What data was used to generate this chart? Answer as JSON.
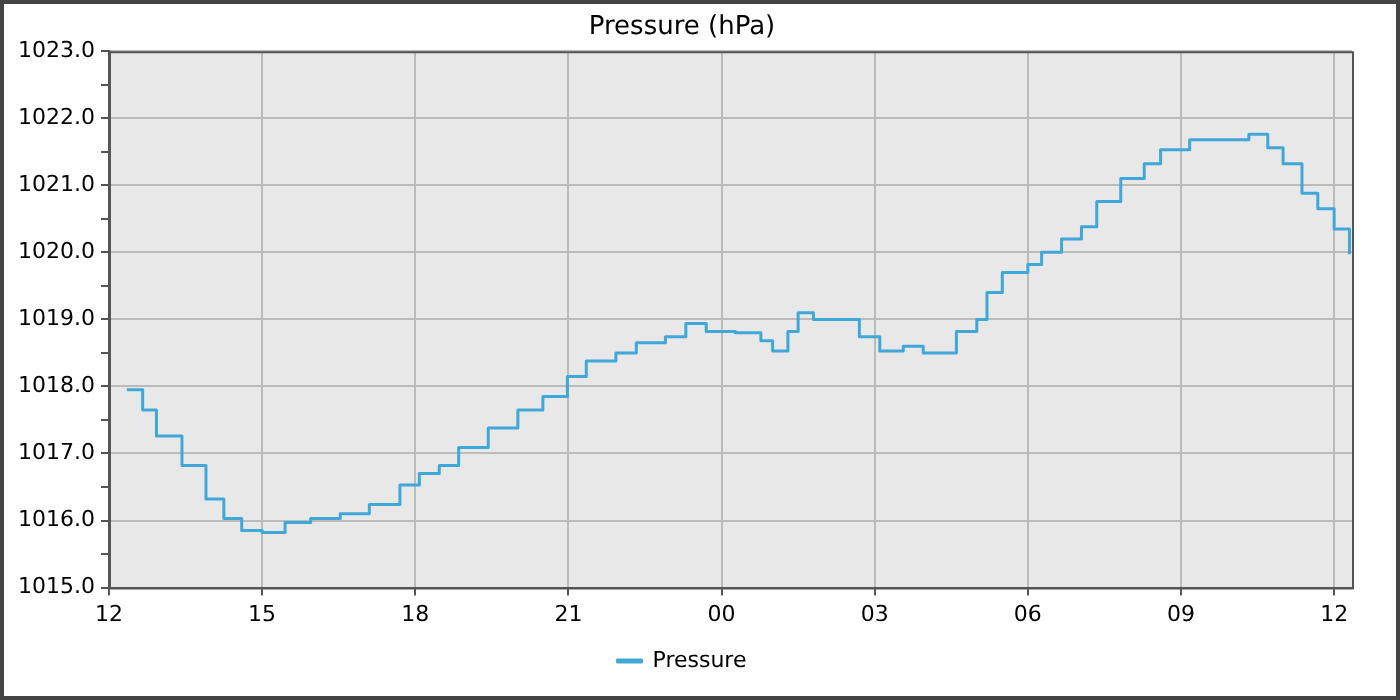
{
  "chart_data": {
    "type": "step",
    "title": "Pressure (hPa)",
    "x": [
      12.35,
      12.66,
      12.93,
      13.43,
      13.9,
      14.25,
      14.6,
      15.0,
      15.45,
      15.95,
      16.53,
      17.1,
      17.7,
      18.08,
      18.47,
      18.85,
      19.43,
      20.01,
      20.5,
      20.98,
      21.35,
      21.93,
      22.33,
      22.9,
      23.3,
      23.7,
      24.27,
      24.77,
      25.0,
      25.3,
      25.5,
      25.8,
      26.4,
      26.7,
      27.1,
      27.56,
      27.95,
      28.33,
      28.6,
      29.0,
      29.2,
      29.5,
      30.0,
      30.27,
      30.66,
      31.05,
      31.35,
      31.82,
      32.28,
      32.6,
      33.17,
      33.75,
      34.33,
      34.7,
      35.0,
      35.37,
      35.68,
      36.0,
      36.3
    ],
    "series": [
      {
        "name": "Pressure",
        "color": "#3fa8d8",
        "values": [
          1017.95,
          1017.65,
          1017.26,
          1016.82,
          1016.32,
          1016.03,
          1015.85,
          1015.82,
          1015.97,
          1016.03,
          1016.1,
          1016.24,
          1016.53,
          1016.7,
          1016.82,
          1017.09,
          1017.38,
          1017.65,
          1017.85,
          1018.15,
          1018.38,
          1018.5,
          1018.65,
          1018.74,
          1018.94,
          1018.82,
          1018.8,
          1018.68,
          1018.53,
          1018.82,
          1019.1,
          1019.0,
          1019.0,
          1018.74,
          1018.53,
          1018.6,
          1018.5,
          1018.5,
          1018.82,
          1019.0,
          1019.4,
          1019.7,
          1019.82,
          1020.0,
          1020.2,
          1020.38,
          1020.76,
          1021.1,
          1021.32,
          1021.53,
          1021.68,
          1021.68,
          1021.76,
          1021.56,
          1021.32,
          1020.88,
          1020.65,
          1020.35,
          1019.97
        ]
      }
    ],
    "xlim": [
      12,
      36.35
    ],
    "xticks": [
      {
        "value": 12,
        "label": "12"
      },
      {
        "value": 15,
        "label": "15"
      },
      {
        "value": 18,
        "label": "18"
      },
      {
        "value": 21,
        "label": "21"
      },
      {
        "value": 24,
        "label": "00"
      },
      {
        "value": 27,
        "label": "03"
      },
      {
        "value": 30,
        "label": "06"
      },
      {
        "value": 33,
        "label": "09"
      },
      {
        "value": 36,
        "label": "12"
      }
    ],
    "ylim": [
      1015,
      1023
    ],
    "yticks": [
      {
        "value": 1015,
        "label": "1015.0"
      },
      {
        "value": 1015.5,
        "label": null
      },
      {
        "value": 1016,
        "label": "1016.0"
      },
      {
        "value": 1016.5,
        "label": null
      },
      {
        "value": 1017,
        "label": "1017.0"
      },
      {
        "value": 1017.5,
        "label": null
      },
      {
        "value": 1018,
        "label": "1018.0"
      },
      {
        "value": 1018.5,
        "label": null
      },
      {
        "value": 1019,
        "label": "1019.0"
      },
      {
        "value": 1019.5,
        "label": null
      },
      {
        "value": 1020,
        "label": "1020.0"
      },
      {
        "value": 1020.5,
        "label": null
      },
      {
        "value": 1021,
        "label": "1021.0"
      },
      {
        "value": 1021.5,
        "label": null
      },
      {
        "value": 1022,
        "label": "1022.0"
      },
      {
        "value": 1022.5,
        "label": null
      },
      {
        "value": 1023,
        "label": "1023.0"
      }
    ],
    "grid": true,
    "legend": "bottom",
    "marker": "none",
    "line_style": "solid"
  }
}
